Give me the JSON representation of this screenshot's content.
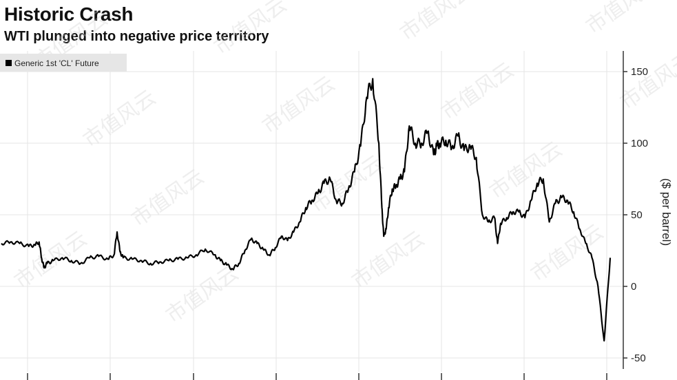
{
  "title": "Historic Crash",
  "subtitle": "WTI plunged into negative price territory",
  "chart_data": {
    "type": "line",
    "legend": {
      "position": "top-left",
      "entries": [
        "Generic 1st 'CL' Future"
      ]
    },
    "ylabel": "($ per barrel)",
    "ylim": [
      -55,
      162
    ],
    "yticks": [
      {
        "value": 150,
        "label": "150"
      },
      {
        "value": 100,
        "label": "100"
      },
      {
        "value": 50,
        "label": "50"
      },
      {
        "value": 0,
        "label": "0"
      },
      {
        "value": -50,
        "label": "-50"
      }
    ],
    "y_axis_side": "right",
    "grid": true,
    "x_grid_count": 8,
    "series": [
      {
        "name": "Generic 1st 'CL' Future",
        "color": "#000000",
        "x": [
          0,
          0.015,
          0.03,
          0.045,
          0.055,
          0.062,
          0.066,
          0.07,
          0.075,
          0.085,
          0.1,
          0.115,
          0.13,
          0.145,
          0.16,
          0.175,
          0.185,
          0.19,
          0.195,
          0.2,
          0.215,
          0.23,
          0.245,
          0.26,
          0.275,
          0.29,
          0.305,
          0.32,
          0.335,
          0.35,
          0.36,
          0.37,
          0.38,
          0.39,
          0.4,
          0.41,
          0.42,
          0.43,
          0.44,
          0.45,
          0.46,
          0.47,
          0.48,
          0.49,
          0.5,
          0.51,
          0.52,
          0.53,
          0.54,
          0.55,
          0.56,
          0.57,
          0.58,
          0.59,
          0.6,
          0.61,
          0.62,
          0.625,
          0.628,
          0.632,
          0.636,
          0.642,
          0.648,
          0.655,
          0.662,
          0.67,
          0.68,
          0.69,
          0.7,
          0.71,
          0.715,
          0.72,
          0.73,
          0.74,
          0.75,
          0.76,
          0.77,
          0.78,
          0.79,
          0.8,
          0.81,
          0.815,
          0.82,
          0.83,
          0.84,
          0.85,
          0.86,
          0.87,
          0.88,
          0.89,
          0.9,
          0.91,
          0.92,
          0.93,
          0.94,
          0.95,
          0.96,
          0.97,
          0.98,
          0.99,
          1.0
        ],
        "values": [
          30,
          31,
          30,
          28,
          29,
          31,
          20,
          13,
          16,
          18,
          20,
          18,
          16,
          20,
          21,
          19,
          22,
          38,
          24,
          20,
          19,
          18,
          16,
          17,
          18,
          19,
          20,
          22,
          26,
          22,
          18,
          15,
          12,
          16,
          25,
          33,
          30,
          26,
          22,
          27,
          35,
          32,
          38,
          45,
          55,
          60,
          65,
          72,
          75,
          60,
          58,
          68,
          80,
          98,
          132,
          145,
          100,
          55,
          35,
          40,
          55,
          68,
          70,
          75,
          80,
          112,
          100,
          100,
          108,
          92,
          98,
          100,
          102,
          97,
          105,
          95,
          98,
          90,
          50,
          45,
          48,
          30,
          44,
          48,
          52,
          52,
          48,
          60,
          72,
          75,
          45,
          58,
          62,
          60,
          52,
          40,
          30,
          20,
          0,
          -38,
          20
        ]
      }
    ]
  },
  "watermark": "市值风云"
}
